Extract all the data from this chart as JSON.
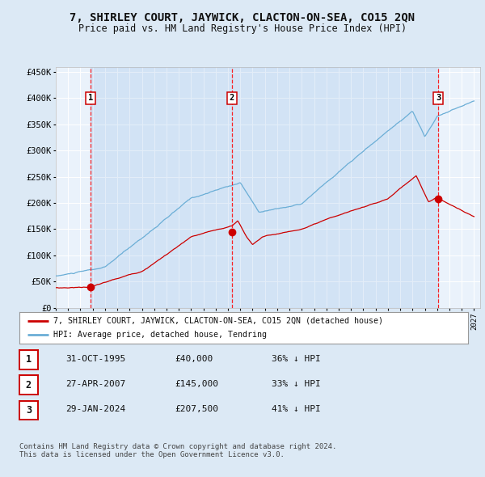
{
  "title": "7, SHIRLEY COURT, JAYWICK, CLACTON-ON-SEA, CO15 2QN",
  "subtitle": "Price paid vs. HM Land Registry's House Price Index (HPI)",
  "ylabel_ticks": [
    "£0",
    "£50K",
    "£100K",
    "£150K",
    "£200K",
    "£250K",
    "£300K",
    "£350K",
    "£400K",
    "£450K"
  ],
  "ytick_vals": [
    0,
    50000,
    100000,
    150000,
    200000,
    250000,
    300000,
    350000,
    400000,
    450000
  ],
  "ylim": [
    0,
    460000
  ],
  "xlim_start": 1993.0,
  "xlim_end": 2027.5,
  "sale_dates": [
    1995.833,
    2007.32,
    2024.08
  ],
  "sale_prices": [
    40000,
    145000,
    207500
  ],
  "sale_labels": [
    "1",
    "2",
    "3"
  ],
  "legend_red": "7, SHIRLEY COURT, JAYWICK, CLACTON-ON-SEA, CO15 2QN (detached house)",
  "legend_blue": "HPI: Average price, detached house, Tendring",
  "table_rows": [
    [
      "1",
      "31-OCT-1995",
      "£40,000",
      "36% ↓ HPI"
    ],
    [
      "2",
      "27-APR-2007",
      "£145,000",
      "33% ↓ HPI"
    ],
    [
      "3",
      "29-JAN-2024",
      "£207,500",
      "41% ↓ HPI"
    ]
  ],
  "footnote": "Contains HM Land Registry data © Crown copyright and database right 2024.\nThis data is licensed under the Open Government Licence v3.0.",
  "bg_color": "#dce9f5",
  "plot_bg": "#eaf2fb",
  "grid_color": "#ffffff",
  "red_line_color": "#cc0000",
  "blue_line_color": "#6baed6",
  "title_fontsize": 10,
  "subtitle_fontsize": 8.5,
  "tick_fontsize": 7.5,
  "xticks": [
    1993,
    1994,
    1995,
    1996,
    1997,
    1998,
    1999,
    2000,
    2001,
    2002,
    2003,
    2004,
    2005,
    2006,
    2007,
    2008,
    2009,
    2010,
    2011,
    2012,
    2013,
    2014,
    2015,
    2016,
    2017,
    2018,
    2019,
    2020,
    2021,
    2022,
    2023,
    2024,
    2025,
    2026,
    2027
  ]
}
